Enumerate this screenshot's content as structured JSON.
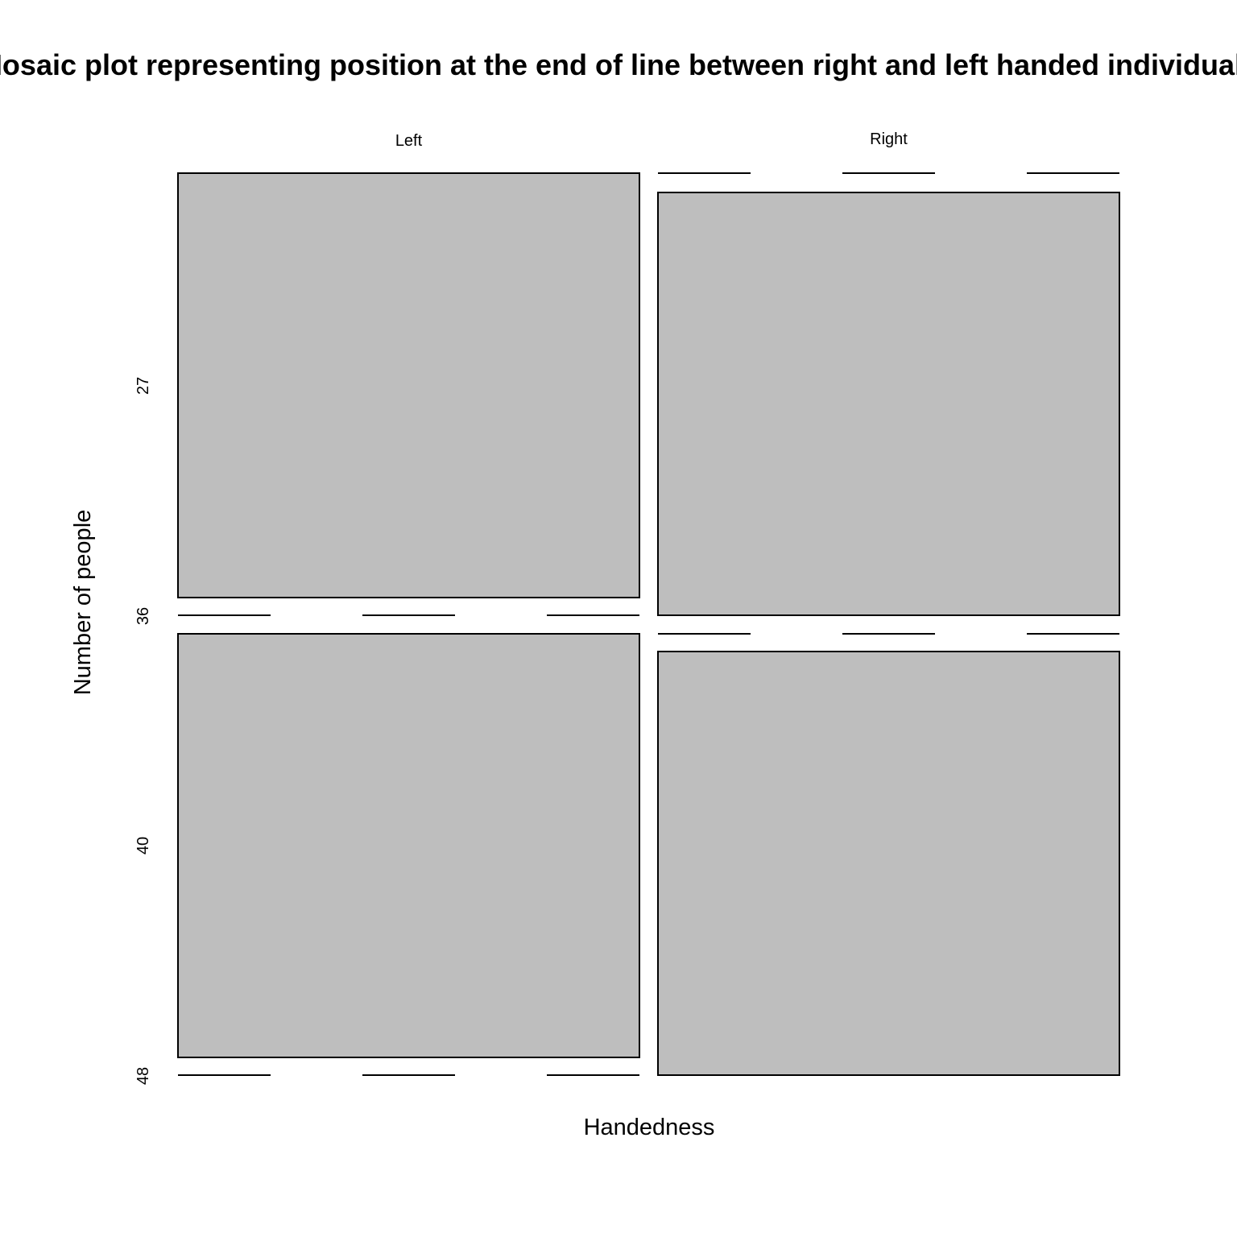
{
  "chart_data": {
    "type": "mosaic",
    "title": "Mosaic plot representing position at the end of line between right and left handed individuals",
    "xlabel": "Handedness",
    "ylabel": "Number of people",
    "categories": [
      "Left",
      "Right"
    ],
    "row_labels": [
      "27",
      "36",
      "40",
      "48"
    ],
    "fill_color": "#bebebe",
    "border_color": "#000000",
    "grid": false,
    "legend": "none"
  }
}
